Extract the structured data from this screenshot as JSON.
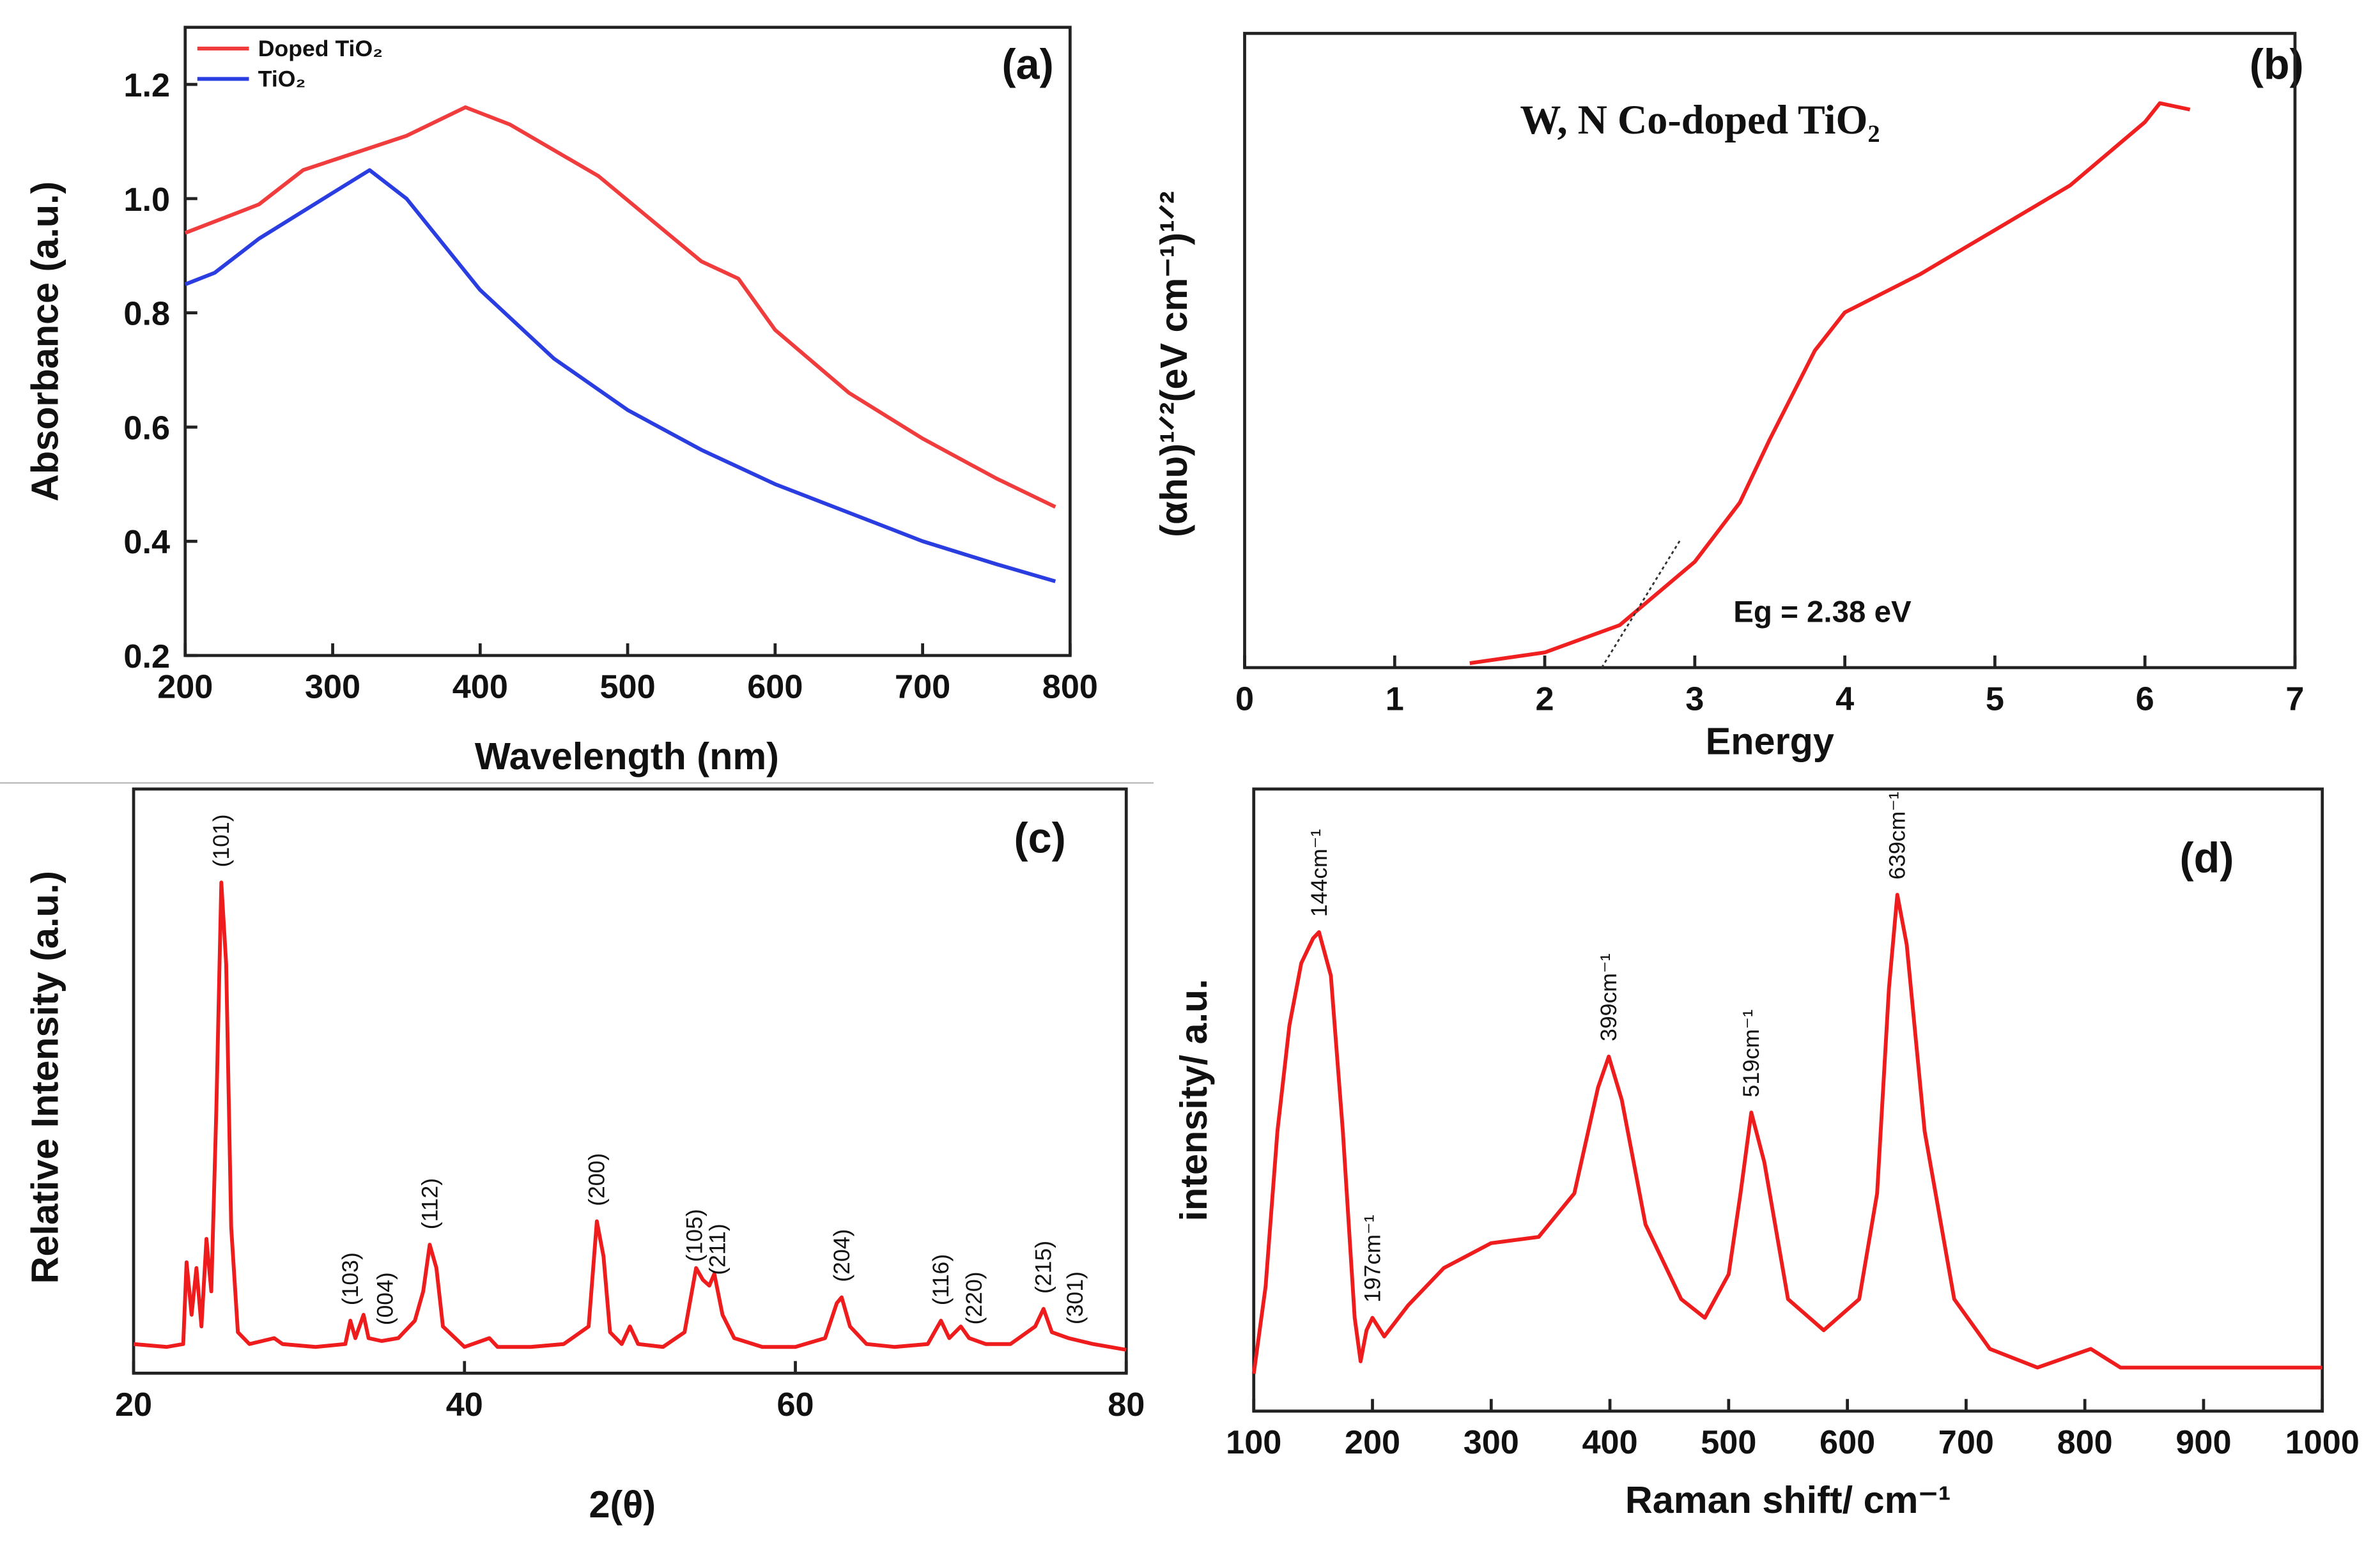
{
  "chart_data": [
    {
      "type": "line",
      "panel_label": "(a)",
      "x_label": "Wavelength (nm)",
      "y_label": "Absorbance (a.u.)",
      "xlim": [
        200,
        800
      ],
      "xticks": [
        200,
        300,
        400,
        500,
        600,
        700,
        800
      ],
      "ylim": [
        0.2,
        1.3
      ],
      "yticks": [
        0.2,
        0.4,
        0.6,
        0.8,
        {
          "value": 1,
          "label": "1.0"
        },
        1.2
      ],
      "legend": "upper left",
      "series": [
        {
          "name": "Doped TiO₂",
          "color": "#f03c3c",
          "x": [
            200,
            250,
            280,
            350,
            390,
            420,
            480,
            550,
            575,
            600,
            650,
            700,
            750,
            790
          ],
          "values": [
            0.94,
            0.99,
            1.05,
            1.11,
            1.16,
            1.13,
            1.04,
            0.89,
            0.86,
            0.77,
            0.66,
            0.58,
            0.51,
            0.46
          ]
        },
        {
          "name": "TiO₂",
          "color": "#2a3de0",
          "x": [
            200,
            220,
            250,
            300,
            325,
            350,
            400,
            450,
            500,
            550,
            600,
            650,
            700,
            750,
            790
          ],
          "values": [
            0.85,
            0.87,
            0.93,
            1.01,
            1.05,
            1.0,
            0.84,
            0.72,
            0.63,
            0.56,
            0.5,
            0.45,
            0.4,
            0.36,
            0.33
          ]
        }
      ]
    },
    {
      "type": "line",
      "panel_label": "(b)",
      "title": "W, N Co-doped TiO₂",
      "x_label": "Energy",
      "y_label": "(αhυ)¹ᐟ²(eV cm⁻¹)¹ᐟ²",
      "annotation": "Eg = 2.38 eV",
      "xlim": [
        0,
        7
      ],
      "xticks": [
        0,
        1,
        2,
        3,
        4,
        5,
        6,
        7
      ],
      "ylim": [
        0,
        100
      ],
      "bandgap_line": {
        "x": [
          2.38,
          2.9
        ],
        "y": [
          0,
          20
        ]
      },
      "series": [
        {
          "color": "#f02020",
          "x": [
            1.5,
            2.0,
            2.5,
            3.0,
            3.3,
            3.5,
            3.8,
            4.0,
            4.5,
            5.0,
            5.5,
            6.0,
            6.1,
            6.3
          ],
          "values": [
            0.7,
            2.4,
            6.7,
            16.7,
            26,
            36,
            50,
            56,
            62,
            69,
            76,
            86,
            89,
            88
          ]
        }
      ]
    },
    {
      "type": "line",
      "panel_label": "(c)",
      "x_label": "2(θ)",
      "y_label": "Relative Intensity (a.u.)",
      "xlim": [
        20,
        80
      ],
      "xticks": [
        20,
        40,
        60,
        80
      ],
      "ylim": [
        0,
        100
      ],
      "series": [
        {
          "color": "#ee1c1c",
          "x": [
            20,
            22,
            23,
            23.2,
            23.5,
            23.8,
            24.1,
            24.4,
            24.7,
            25.0,
            25.3,
            25.6,
            25.9,
            26.3,
            27,
            28.5,
            29,
            31,
            32.8,
            33.1,
            33.4,
            33.9,
            34.2,
            35,
            36,
            37,
            37.5,
            37.9,
            38.3,
            38.7,
            40,
            41.5,
            42,
            44,
            46,
            47.5,
            48,
            48.4,
            48.8,
            49.5,
            50,
            50.5,
            52,
            53.3,
            54,
            54.4,
            54.8,
            55.1,
            55.6,
            56.3,
            58,
            60,
            61.8,
            62.5,
            62.8,
            63.3,
            64.3,
            66,
            68,
            68.8,
            69.3,
            70,
            70.5,
            71.5,
            73,
            74.5,
            75,
            75.5,
            76.5,
            78,
            80
          ],
          "values": [
            5,
            4.5,
            5,
            19,
            10,
            18,
            8,
            23,
            14,
            45,
            84,
            70,
            25,
            7,
            5,
            6,
            5,
            4.5,
            5,
            9,
            6,
            10,
            6,
            5.5,
            6,
            9,
            14,
            22,
            18,
            8,
            4.5,
            6,
            4.5,
            4.5,
            5,
            8,
            26,
            20,
            7,
            5,
            8,
            5,
            4.5,
            7,
            18,
            16,
            15,
            17,
            10,
            6,
            4.5,
            4.5,
            6,
            12,
            13,
            8,
            5,
            4.5,
            5,
            9,
            6,
            8,
            6,
            5,
            5,
            8,
            11,
            7,
            6,
            5,
            4
          ]
        }
      ],
      "peak_labels": [
        {
          "label": "(101)",
          "x": 25.3
        },
        {
          "label": "(103)",
          "x": 33.1
        },
        {
          "label": "(004)",
          "x": 35.2
        },
        {
          "label": "(112)",
          "x": 37.9
        },
        {
          "label": "(200)",
          "x": 48
        },
        {
          "label": "(105)",
          "x": 53.9
        },
        {
          "label": "(211)",
          "x": 55.3
        },
        {
          "label": "(204)",
          "x": 62.8
        },
        {
          "label": "(116)",
          "x": 68.8
        },
        {
          "label": "(220)",
          "x": 70.8
        },
        {
          "label": "(215)",
          "x": 75
        },
        {
          "label": "(301)",
          "x": 76.9
        }
      ]
    },
    {
      "type": "line",
      "panel_label": "(d)",
      "x_label": "Raman shift/ cm⁻¹",
      "y_label": "intensity/ a.u.",
      "xlim": [
        100,
        1000
      ],
      "xticks": [
        100,
        200,
        300,
        400,
        500,
        600,
        700,
        800,
        900,
        1000
      ],
      "ylim": [
        0,
        100
      ],
      "series": [
        {
          "color": "#ee1c1c",
          "x": [
            100,
            110,
            120,
            130,
            140,
            150,
            155,
            165,
            175,
            185,
            190,
            195,
            200,
            210,
            230,
            260,
            300,
            340,
            370,
            390,
            399,
            410,
            430,
            460,
            480,
            500,
            510,
            519,
            530,
            550,
            580,
            610,
            625,
            635,
            642,
            650,
            665,
            690,
            720,
            760,
            790,
            805,
            830,
            900,
            1000
          ],
          "values": [
            6,
            20,
            45,
            62,
            72,
            76,
            77,
            70,
            45,
            15,
            8,
            13,
            15,
            12,
            17,
            23,
            27,
            28,
            35,
            52,
            57,
            50,
            30,
            18,
            15,
            22,
            35,
            48,
            40,
            18,
            13,
            18,
            35,
            68,
            83,
            75,
            45,
            18,
            10,
            7,
            9,
            10,
            7,
            7,
            7
          ]
        }
      ],
      "peak_labels": [
        {
          "label": "144cm⁻¹",
          "x": 155
        },
        {
          "label": "197cm⁻¹",
          "x": 200
        },
        {
          "label": "399cm⁻¹",
          "x": 399
        },
        {
          "label": "519cm⁻¹",
          "x": 519
        },
        {
          "label": "639cm⁻¹",
          "x": 642
        }
      ]
    }
  ]
}
